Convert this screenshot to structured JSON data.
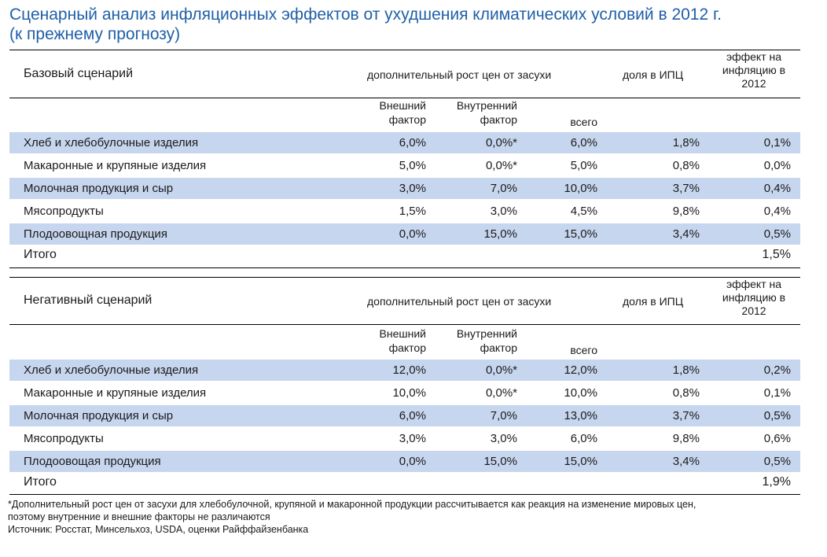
{
  "title": {
    "line1": "Сценарный анализ инфляционных эффектов от ухудшения климатических условий в 2012 г.",
    "line2": "(к прежнему прогнозу)"
  },
  "columns": {
    "growth": "дополнительный рост цен от засухи",
    "share": "доля в ИПЦ",
    "effect_l1": "эффект на",
    "effect_l2": "инфляцию в",
    "effect_l3": "2012",
    "ext_l1": "Внешний",
    "ext_l2": "фактор",
    "int_l1": "Внутренний",
    "int_l2": "фактор",
    "total": "всего"
  },
  "base": {
    "label": "Базовый сценарий",
    "rows": [
      {
        "name": "Хлеб и хлебобулочные изделия",
        "ext": "6,0%",
        "int": "0,0%*",
        "all": "6,0%",
        "share": "1,8%",
        "effect": "0,1%"
      },
      {
        "name": "Макаронные и крупяные изделия",
        "ext": "5,0%",
        "int": "0,0%*",
        "all": "5,0%",
        "share": "0,8%",
        "effect": "0,0%"
      },
      {
        "name": "Молочная продукция и сыр",
        "ext": "3,0%",
        "int": "7,0%",
        "all": "10,0%",
        "share": "3,7%",
        "effect": "0,4%"
      },
      {
        "name": "Мясопродукты",
        "ext": "1,5%",
        "int": "3,0%",
        "all": "4,5%",
        "share": "9,8%",
        "effect": "0,4%"
      },
      {
        "name": "Плодоовощная продукция",
        "ext": "0,0%",
        "int": "15,0%",
        "all": "15,0%",
        "share": "3,4%",
        "effect": "0,5%"
      }
    ],
    "total_label": "Итого",
    "total_value": "1,5%"
  },
  "negative": {
    "label": "Негативный сценарий",
    "rows": [
      {
        "name": "Хлеб и хлебобулочные изделия",
        "ext": "12,0%",
        "int": "0,0%*",
        "all": "12,0%",
        "share": "1,8%",
        "effect": "0,2%"
      },
      {
        "name": "Макаронные и крупяные изделия",
        "ext": "10,0%",
        "int": "0,0%*",
        "all": "10,0%",
        "share": "0,8%",
        "effect": "0,1%"
      },
      {
        "name": "Молочная продукция и сыр",
        "ext": "6,0%",
        "int": "7,0%",
        "all": "13,0%",
        "share": "3,7%",
        "effect": "0,5%"
      },
      {
        "name": "Мясопродукты",
        "ext": "3,0%",
        "int": "3,0%",
        "all": "6,0%",
        "share": "9,8%",
        "effect": "0,6%"
      },
      {
        "name": "Плодоовощая продукция",
        "ext": "0,0%",
        "int": "15,0%",
        "all": "15,0%",
        "share": "3,4%",
        "effect": "0,5%"
      }
    ],
    "total_label": "Итого",
    "total_value": "1,9%"
  },
  "footnote": {
    "line1": "*Дополнительный рост цен от засухи для хлебобулочной, крупяной и макаронной продукции рассчитывается как реакция на изменение мировых цен,",
    "line2": "поэтому внутренние и внешние факторы не различаются",
    "source": "Источник: Росстат, Минсельхоз, USDA, оценки Райффайзенбанка"
  }
}
